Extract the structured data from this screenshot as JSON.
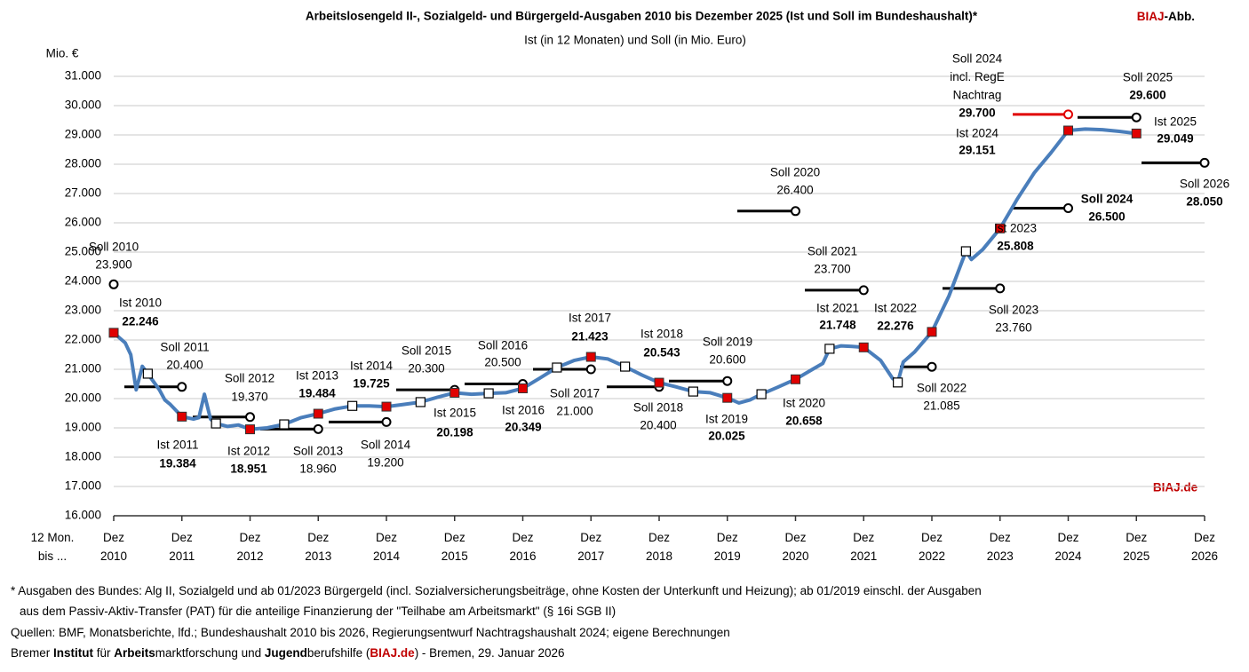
{
  "chart_data": {
    "type": "line",
    "title": "Arbeitslosengeld II-, Sozialgeld- und Bürgergeld-Ausgaben 2010 bis Dezember 2025 (Ist und Soll im Bundeshaushalt)*",
    "subtitle": "Ist (in 12 Monaten) und Soll (in Mio. Euro)",
    "brand": [
      "BIAJ",
      "-Abb."
    ],
    "watermark": "BIAJ.de",
    "y_axis_label": "Mio. €",
    "x_axis_label": "12 Mon. bis ...",
    "xlim": [
      2010,
      2026
    ],
    "xticks": [
      {
        "value": 2010,
        "label": "Dez 2010"
      },
      {
        "value": 2011,
        "label": "Dez 2011"
      },
      {
        "value": 2012,
        "label": "Dez 2012"
      },
      {
        "value": 2013,
        "label": "Dez 2013"
      },
      {
        "value": 2014,
        "label": "Dez 2014"
      },
      {
        "value": 2015,
        "label": "Dez 2015"
      },
      {
        "value": 2016,
        "label": "Dez 2016"
      },
      {
        "value": 2017,
        "label": "Dez 2017"
      },
      {
        "value": 2018,
        "label": "Dez 2018"
      },
      {
        "value": 2019,
        "label": "Dez 2019"
      },
      {
        "value": 2020,
        "label": "Dez 2020"
      },
      {
        "value": 2021,
        "label": "Dez 2021"
      },
      {
        "value": 2022,
        "label": "Dez 2022"
      },
      {
        "value": 2023,
        "label": "Dez 2023"
      },
      {
        "value": 2024,
        "label": "Dez 2024"
      },
      {
        "value": 2025,
        "label": "Dez 2025"
      },
      {
        "value": 2026,
        "label": "Dez 2026"
      }
    ],
    "ylim": [
      16000,
      31000
    ],
    "yticks": [
      {
        "value": 16000,
        "label": "16.000"
      },
      {
        "value": 17000,
        "label": "17.000"
      },
      {
        "value": 18000,
        "label": "18.000"
      },
      {
        "value": 19000,
        "label": "19.000"
      },
      {
        "value": 20000,
        "label": "20.000"
      },
      {
        "value": 21000,
        "label": "21.000"
      },
      {
        "value": 22000,
        "label": "22.000"
      },
      {
        "value": 23000,
        "label": "23.000"
      },
      {
        "value": 24000,
        "label": "24.000"
      },
      {
        "value": 25000,
        "label": "25.000"
      },
      {
        "value": 26000,
        "label": "26.000"
      },
      {
        "value": 27000,
        "label": "27.000"
      },
      {
        "value": 28000,
        "label": "28.000"
      },
      {
        "value": 29000,
        "label": "29.000"
      },
      {
        "value": 30000,
        "label": "30.000"
      },
      {
        "value": 31000,
        "label": "31.000"
      }
    ],
    "grid": true,
    "line": {
      "color": "#4a7ebb",
      "x": [
        2010.0,
        2010.17,
        2010.25,
        2010.33,
        2010.42,
        2010.5,
        2010.67,
        2010.75,
        2010.83,
        2011.0,
        2011.17,
        2011.25,
        2011.33,
        2011.42,
        2011.5,
        2011.67,
        2011.83,
        2012.0,
        2012.25,
        2012.5,
        2012.75,
        2013.0,
        2013.25,
        2013.5,
        2013.75,
        2014.0,
        2014.25,
        2014.5,
        2014.75,
        2015.0,
        2015.25,
        2015.5,
        2015.75,
        2016.0,
        2016.25,
        2016.5,
        2016.75,
        2017.0,
        2017.25,
        2017.5,
        2017.75,
        2018.0,
        2018.25,
        2018.5,
        2018.75,
        2019.0,
        2019.17,
        2019.33,
        2019.5,
        2019.75,
        2020.0,
        2020.25,
        2020.4,
        2020.5,
        2020.67,
        2020.83,
        2021.0,
        2021.25,
        2021.42,
        2021.5,
        2021.58,
        2021.75,
        2022.0,
        2022.25,
        2022.5,
        2022.58,
        2022.75,
        2023.0,
        2023.25,
        2023.5,
        2023.75,
        2024.0,
        2024.25,
        2024.5,
        2024.75,
        2025.0
      ],
      "values": [
        22246,
        21900,
        21500,
        20300,
        21100,
        20850,
        20300,
        19950,
        19800,
        19384,
        19300,
        19350,
        20150,
        19300,
        19150,
        19050,
        19100,
        18951,
        19000,
        19120,
        19350,
        19484,
        19650,
        19750,
        19750,
        19725,
        19800,
        19880,
        20050,
        20198,
        20150,
        20180,
        20200,
        20349,
        20700,
        21060,
        21300,
        21423,
        21350,
        21090,
        20800,
        20543,
        20400,
        20240,
        20200,
        20025,
        19850,
        19950,
        20150,
        20400,
        20658,
        21000,
        21200,
        21700,
        21800,
        21780,
        21748,
        21300,
        20700,
        20550,
        21250,
        21600,
        22276,
        23500,
        25030,
        24750,
        25100,
        25808,
        26800,
        27700,
        28400,
        29151,
        29200,
        29180,
        29120,
        29049
      ]
    },
    "mid_points": {
      "x": [
        2010.5,
        2011.5,
        2012.5,
        2013.5,
        2014.5,
        2015.5,
        2016.5,
        2017.5,
        2018.5,
        2019.5,
        2020.5,
        2021.5,
        2022.5
      ],
      "values": [
        20850,
        19150,
        19120,
        19750,
        19880,
        20180,
        21060,
        21090,
        20240,
        20150,
        21700,
        20550,
        25030
      ]
    },
    "ist": {
      "color": "#e00000",
      "x": [
        2010,
        2011,
        2012,
        2013,
        2014,
        2015,
        2016,
        2017,
        2018,
        2019,
        2020,
        2021,
        2022,
        2023,
        2024,
        2025
      ],
      "labels": [
        "Ist 2010",
        "Ist 2011",
        "Ist 2012",
        "Ist 2013",
        "Ist 2014",
        "Ist 2015",
        "Ist 2016",
        "Ist 2017",
        "Ist 2018",
        "Ist 2019",
        "Ist 2020",
        "Ist 2021",
        "Ist 2022",
        "Ist 2023",
        "Ist 2024",
        "Ist 2025"
      ],
      "values": [
        22246,
        19384,
        18951,
        19484,
        19725,
        20198,
        20349,
        21423,
        20543,
        20025,
        20658,
        21748,
        22276,
        25808,
        29151,
        29049
      ],
      "value_labels": [
        "22.246",
        "19.384",
        "18.951",
        "19.484",
        "19.725",
        "20.198",
        "20.349",
        "21.423",
        "20.543",
        "20.025",
        "20.658",
        "21.748",
        "22.276",
        "25.808",
        "29.151",
        "29.049"
      ]
    },
    "soll": [
      {
        "label": "Soll 2010",
        "x": 2010,
        "value": 23900,
        "value_label": "23.900"
      },
      {
        "label": "Soll 2011",
        "x": 2011,
        "value": 20400,
        "value_label": "20.400"
      },
      {
        "label": "Soll 2012",
        "x": 2012,
        "value": 19370,
        "value_label": "19.370"
      },
      {
        "label": "Soll 2013",
        "x": 2013,
        "value": 18960,
        "value_label": "18.960"
      },
      {
        "label": "Soll 2014",
        "x": 2014,
        "value": 19200,
        "value_label": "19.200"
      },
      {
        "label": "Soll 2015",
        "x": 2015,
        "value": 20300,
        "value_label": "20.300"
      },
      {
        "label": "Soll 2016",
        "x": 2016,
        "value": 20500,
        "value_label": "20.500"
      },
      {
        "label": "Soll 2017",
        "x": 2017,
        "value": 21000,
        "value_label": "21.000"
      },
      {
        "label": "Soll 2018",
        "x": 2018,
        "value": 20400,
        "value_label": "20.400"
      },
      {
        "label": "Soll 2019",
        "x": 2019,
        "value": 20600,
        "value_label": "20.600"
      },
      {
        "label": "Soll 2020",
        "x": 2020,
        "value": 26400,
        "value_label": "26.400"
      },
      {
        "label": "Soll 2021",
        "x": 2021,
        "value": 23700,
        "value_label": "23.700"
      },
      {
        "label": "Soll 2022",
        "x": 2022,
        "value": 21085,
        "value_label": "21.085"
      },
      {
        "label": "Soll 2023",
        "x": 2023,
        "value": 23760,
        "value_label": "23.760"
      },
      {
        "label": "Soll 2024",
        "x": 2024,
        "value": 26500,
        "value_label": "26.500"
      },
      {
        "label": [
          "Soll 2024",
          "incl. RegE",
          "Nachtrag"
        ],
        "x": 2024,
        "value": 29700,
        "value_label": "29.700",
        "color": "#e00000"
      },
      {
        "label": "Soll 2025",
        "x": 2025,
        "value": 29600,
        "value_label": "29.600"
      },
      {
        "label": "Soll 2026",
        "x": 2026,
        "value": 28050,
        "value_label": "28.050"
      }
    ]
  },
  "footnotes": [
    "* Ausgaben des Bundes: Alg II, Sozialgeld und ab 01/2023 Bürgergeld (incl. Sozialversicherungsbeiträge, ohne Kosten der Unterkunft und Heizung); ab 01/2019 einschl. der Ausgaben",
    "aus dem Passiv-Aktiv-Transfer (PAT) für die anteilige Finanzierung der \"Teilhabe am Arbeitsmarkt\" (§ 16i SGB II)",
    "Quellen: BMF, Monatsberichte, lfd.; Bundeshaushalt 2010 bis 2026, Regierungsentwurf Nachtragshaushalt 2024; eigene Berechnungen"
  ],
  "footer": [
    "Bremer ",
    "Institut",
    " für ",
    "Arbeits",
    "marktforschung und ",
    "Jugend",
    "berufshilfe (",
    "BIAJ.de",
    ") - Bremen, 29. Januar 2026"
  ]
}
